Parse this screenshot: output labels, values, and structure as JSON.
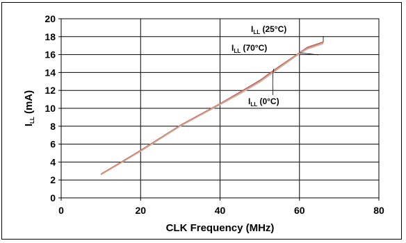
{
  "chart_data": {
    "type": "line",
    "title": "",
    "xlabel": "CLK Frequency (MHz)",
    "ylabel": {
      "main": "I",
      "sub": "LL",
      "rest": " (mA)"
    },
    "xlim": [
      0,
      80
    ],
    "ylim": [
      0,
      20
    ],
    "xticks": [
      0,
      20,
      40,
      60,
      80
    ],
    "yticks": [
      0,
      2,
      4,
      6,
      8,
      10,
      12,
      14,
      16,
      18,
      20
    ],
    "grid": true,
    "legend": "none",
    "series": [
      {
        "name": "0°C",
        "color": "#b8c8dc",
        "x": [
          10,
          15,
          20,
          25,
          30,
          35,
          40,
          45,
          50,
          55,
          60,
          62,
          64,
          66
        ],
        "y": [
          2.6,
          3.9,
          5.2,
          6.6,
          8.0,
          9.2,
          10.4,
          11.6,
          12.9,
          14.5,
          16.1,
          16.6,
          16.9,
          17.2
        ]
      },
      {
        "name": "25°C",
        "color": "#c0504d",
        "x": [
          10,
          15,
          20,
          25,
          30,
          35,
          40,
          45,
          50,
          55,
          60,
          62,
          64,
          66
        ],
        "y": [
          2.65,
          3.95,
          5.3,
          6.7,
          8.1,
          9.3,
          10.5,
          11.8,
          13.1,
          14.7,
          16.2,
          16.8,
          17.1,
          17.4
        ]
      },
      {
        "name": "70°C",
        "color": "#d4a083",
        "x": [
          10,
          15,
          20,
          25,
          30,
          35,
          40,
          45,
          50,
          55,
          60,
          62,
          64,
          66
        ],
        "y": [
          2.6,
          3.9,
          5.25,
          6.65,
          8.05,
          9.25,
          10.45,
          11.7,
          13.0,
          14.6,
          16.15,
          16.7,
          17.0,
          17.3
        ]
      }
    ],
    "annotations": [
      {
        "main": "I",
        "sub": "LL",
        "rest": " (25°C)",
        "x": 66,
        "y": 17.4
      },
      {
        "main": "I",
        "sub": "LL",
        "rest": " (70°C)",
        "x": 60,
        "y": 16.2
      },
      {
        "main": "I",
        "sub": "LL",
        "rest": " (0°C)",
        "x": 53.5,
        "y": 14.4
      }
    ]
  }
}
